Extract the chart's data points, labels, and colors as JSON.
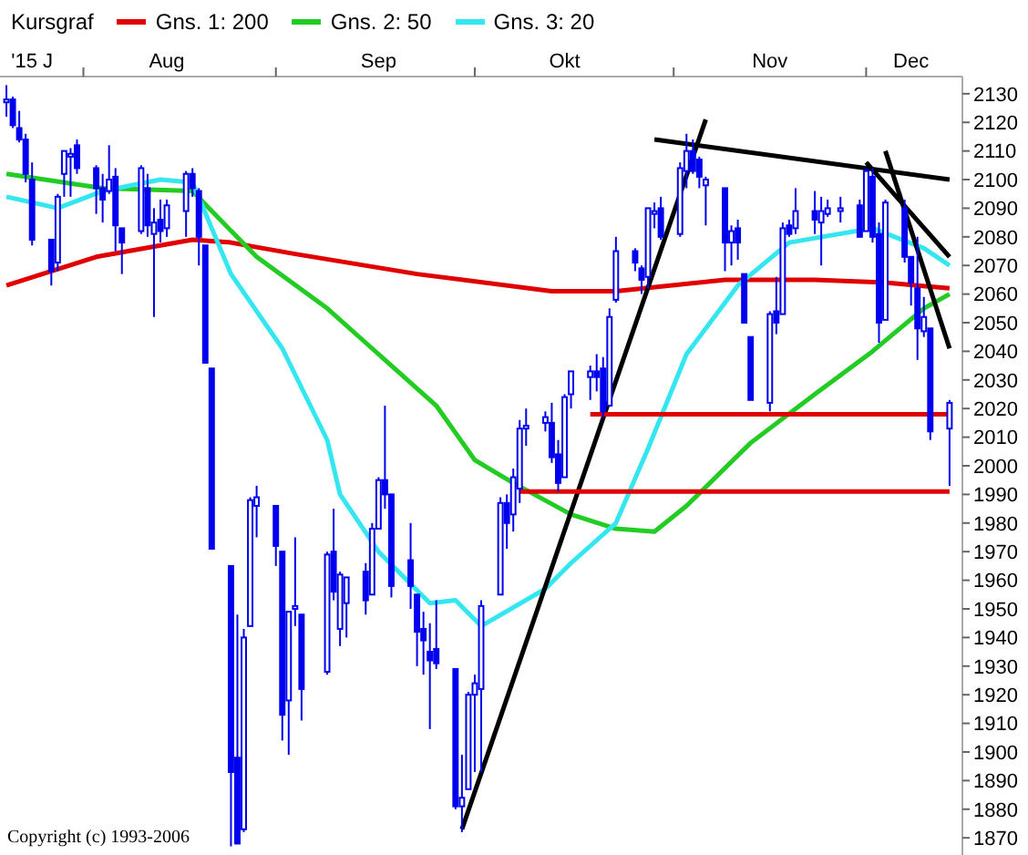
{
  "chart_data": {
    "type": "candlestick",
    "color": "#0000ee",
    "legend": "top left",
    "legend_title": "Kursgraf",
    "marker": "none",
    "annotations": [
      "Copyright (c) 1993-2006"
    ],
    "xlim": [
      "2015-07-19",
      "2015-12-16"
    ],
    "xticks": [
      {
        "value": "2015-07-24",
        "label": "'15 J"
      },
      {
        "value": "2015-08-01",
        "label": null
      },
      {
        "value": "2015-08-14",
        "label": "Aug"
      },
      {
        "value": "2015-08-31",
        "label": null
      },
      {
        "value": "2015-09-16",
        "label": "Sep"
      },
      {
        "value": "2015-10-01",
        "label": null
      },
      {
        "value": "2015-10-15",
        "label": "Okt"
      },
      {
        "value": "2015-11-01",
        "label": null
      },
      {
        "value": "2015-11-16",
        "label": "Nov"
      },
      {
        "value": "2015-12-01",
        "label": null
      },
      {
        "value": "2015-12-08",
        "label": "Dec"
      }
    ],
    "ylim": [
      1864,
      2136
    ],
    "yticks": [
      1870,
      1880,
      1890,
      1900,
      1910,
      1920,
      1930,
      1940,
      1950,
      1960,
      1970,
      1980,
      1990,
      2000,
      2010,
      2020,
      2030,
      2040,
      2050,
      2060,
      2070,
      2080,
      2090,
      2100,
      2110,
      2120,
      2130
    ],
    "x": [
      "2015-07-20",
      "2015-07-21",
      "2015-07-22",
      "2015-07-23",
      "2015-07-24",
      "2015-07-27",
      "2015-07-28",
      "2015-07-29",
      "2015-07-30",
      "2015-07-31",
      "2015-08-03",
      "2015-08-04",
      "2015-08-05",
      "2015-08-06",
      "2015-08-07",
      "2015-08-10",
      "2015-08-11",
      "2015-08-12",
      "2015-08-13",
      "2015-08-14",
      "2015-08-17",
      "2015-08-18",
      "2015-08-19",
      "2015-08-20",
      "2015-08-21",
      "2015-08-24",
      "2015-08-25",
      "2015-08-26",
      "2015-08-27",
      "2015-08-28",
      "2015-08-31",
      "2015-09-01",
      "2015-09-02",
      "2015-09-03",
      "2015-09-04",
      "2015-09-08",
      "2015-09-09",
      "2015-09-10",
      "2015-09-11",
      "2015-09-14",
      "2015-09-15",
      "2015-09-16",
      "2015-09-17",
      "2015-09-18",
      "2015-09-21",
      "2015-09-22",
      "2015-09-23",
      "2015-09-24",
      "2015-09-25",
      "2015-09-28",
      "2015-09-29",
      "2015-09-30",
      "2015-10-01",
      "2015-10-02",
      "2015-10-05",
      "2015-10-06",
      "2015-10-07",
      "2015-10-08",
      "2015-10-09",
      "2015-10-12",
      "2015-10-13",
      "2015-10-14",
      "2015-10-15",
      "2015-10-16",
      "2015-10-19",
      "2015-10-20",
      "2015-10-21",
      "2015-10-22",
      "2015-10-23",
      "2015-10-26",
      "2015-10-27",
      "2015-10-28",
      "2015-10-29",
      "2015-10-30",
      "2015-11-02",
      "2015-11-03",
      "2015-11-04",
      "2015-11-05",
      "2015-11-06",
      "2015-11-09",
      "2015-11-10",
      "2015-11-11",
      "2015-11-12",
      "2015-11-13",
      "2015-11-16",
      "2015-11-17",
      "2015-11-18",
      "2015-11-19",
      "2015-11-20",
      "2015-11-23",
      "2015-11-24",
      "2015-11-25",
      "2015-11-27",
      "2015-11-30",
      "2015-12-01",
      "2015-12-02",
      "2015-12-03",
      "2015-12-04",
      "2015-12-07",
      "2015-12-08",
      "2015-12-09",
      "2015-12-10",
      "2015-12-11",
      "2015-12-14"
    ],
    "ohlc": [
      [
        2127,
        2133,
        2122,
        2128
      ],
      [
        2128,
        2129,
        2118,
        2119
      ],
      [
        2118,
        2124,
        2113,
        2114
      ],
      [
        2114,
        2116,
        2099,
        2102
      ],
      [
        2100,
        2106,
        2077,
        2079
      ],
      [
        2079,
        2079,
        2063,
        2068
      ],
      [
        2071,
        2095,
        2068,
        2094
      ],
      [
        2102,
        2110,
        2094,
        2110
      ],
      [
        2108,
        2111,
        2094,
        2109
      ],
      [
        2112,
        2114,
        2102,
        2104
      ],
      [
        2104,
        2105,
        2088,
        2097
      ],
      [
        2097,
        2102,
        2085,
        2093
      ],
      [
        2096,
        2112,
        2095,
        2100
      ],
      [
        2101,
        2104,
        2075,
        2084
      ],
      [
        2083,
        2083,
        2067,
        2078
      ],
      [
        2082,
        2105,
        2081,
        2104
      ],
      [
        2097,
        2102,
        2080,
        2084
      ],
      [
        2081,
        2090,
        2052,
        2085
      ],
      [
        2086,
        2093,
        2078,
        2082
      ],
      [
        2083,
        2093,
        2080,
        2091
      ],
      [
        2089,
        2103,
        2080,
        2102
      ],
      [
        2102,
        2104,
        2094,
        2097
      ],
      [
        2096,
        2097,
        2070,
        2080
      ],
      [
        2077,
        2077,
        2036,
        2036
      ],
      [
        2034,
        2034,
        1971,
        1971
      ],
      [
        1965,
        1965,
        1867,
        1893
      ],
      [
        1898,
        1948,
        1868,
        1868
      ],
      [
        1873,
        1943,
        1872,
        1940
      ],
      [
        1944,
        1989,
        1944,
        1988
      ],
      [
        1986,
        1993,
        1975,
        1989
      ],
      [
        1986,
        1986,
        1965,
        1972
      ],
      [
        1970,
        1970,
        1904,
        1913
      ],
      [
        1918,
        1949,
        1899,
        1949
      ],
      [
        1950,
        1975,
        1944,
        1951
      ],
      [
        1948,
        1948,
        1911,
        1922
      ],
      [
        1928,
        1970,
        1927,
        1969
      ],
      [
        1970,
        1985,
        1953,
        1956
      ],
      [
        1943,
        1963,
        1937,
        1962
      ],
      [
        1952,
        1961,
        1940,
        1961
      ],
      [
        1963,
        1966,
        1948,
        1953
      ],
      [
        1955,
        1980,
        1955,
        1978
      ],
      [
        1978,
        1996,
        1978,
        1995
      ],
      [
        1995,
        2021,
        1985,
        1990
      ],
      [
        1990,
        1990,
        1954,
        1958
      ],
      [
        1967,
        1980,
        1950,
        1958
      ],
      [
        1955,
        1955,
        1930,
        1942
      ],
      [
        1943,
        1949,
        1927,
        1939
      ],
      [
        1935,
        1945,
        1908,
        1932
      ],
      [
        1936,
        1953,
        1929,
        1931
      ],
      [
        1929,
        1929,
        1880,
        1881
      ],
      [
        1881,
        1899,
        1872,
        1884
      ],
      [
        1887,
        1921,
        1887,
        1920
      ],
      [
        1920,
        1927,
        1893,
        1924
      ],
      [
        1922,
        1953,
        1893,
        1951
      ],
      [
        1955,
        1989,
        1955,
        1987
      ],
      [
        1987,
        1990,
        1971,
        1980
      ],
      [
        1983,
        1999,
        1977,
        1996
      ],
      [
        1992,
        2016,
        1987,
        2013
      ],
      [
        2013,
        2020,
        2007,
        2014
      ],
      [
        2015,
        2019,
        2012,
        2017
      ],
      [
        2015,
        2022,
        2001,
        2003
      ],
      [
        2004,
        2009,
        1991,
        1994
      ],
      [
        1996,
        2025,
        1996,
        2024
      ],
      [
        2025,
        2033,
        2020,
        2033
      ],
      [
        2031,
        2035,
        2023,
        2033
      ],
      [
        2033,
        2039,
        2026,
        2031
      ],
      [
        2034,
        2038,
        2017,
        2019
      ],
      [
        2021,
        2055,
        2021,
        2052
      ],
      [
        2058,
        2080,
        2057,
        2075
      ],
      [
        2075,
        2076,
        2068,
        2071
      ],
      [
        2069,
        2070,
        2060,
        2065
      ],
      [
        2066,
        2090,
        2062,
        2090
      ],
      [
        2088,
        2092,
        2083,
        2089
      ],
      [
        2090,
        2094,
        2079,
        2080
      ],
      [
        2081,
        2106,
        2080,
        2104
      ],
      [
        2103,
        2116,
        2097,
        2110
      ],
      [
        2110,
        2114,
        2102,
        2103
      ],
      [
        2107,
        2108,
        2097,
        2101
      ],
      [
        2098,
        2101,
        2084,
        2100
      ],
      [
        2097,
        2097,
        2068,
        2078
      ],
      [
        2078,
        2084,
        2070,
        2082
      ],
      [
        2083,
        2086,
        2072,
        2078
      ],
      [
        2067,
        2067,
        2050,
        2050
      ],
      [
        2045,
        2045,
        2023,
        2023
      ],
      [
        2022,
        2054,
        2019,
        2053
      ],
      [
        2054,
        2066,
        2046,
        2050
      ],
      [
        2053,
        2085,
        2053,
        2083
      ],
      [
        2084,
        2086,
        2080,
        2081
      ],
      [
        2083,
        2097,
        2081,
        2089
      ],
      [
        2089,
        2096,
        2081,
        2086
      ],
      [
        2085,
        2094,
        2070,
        2089
      ],
      [
        2088,
        2093,
        2087,
        2090
      ],
      [
        2089,
        2094,
        2085,
        2090
      ],
      [
        2091,
        2093,
        2080,
        2080
      ],
      [
        2082,
        2104,
        2082,
        2103
      ],
      [
        2101,
        2104,
        2078,
        2080
      ],
      [
        2081,
        2085,
        2043,
        2050
      ],
      [
        2051,
        2093,
        2051,
        2092
      ],
      [
        2090,
        2093,
        2071,
        2073
      ],
      [
        2073,
        2073,
        2056,
        2064
      ],
      [
        2062,
        2080,
        2037,
        2048
      ],
      [
        2047,
        2059,
        2045,
        2052
      ],
      [
        2048,
        2048,
        2009,
        2012
      ],
      [
        2013,
        2023,
        1993,
        2022
      ]
    ],
    "series": [
      {
        "type": "line",
        "name": "Gns. 1: 200",
        "color": "#e00000",
        "x": [
          "2015-07-20",
          "2015-08-03",
          "2015-08-18",
          "2015-08-24",
          "2015-09-03",
          "2015-09-22",
          "2015-10-13",
          "2015-10-23",
          "2015-11-09",
          "2015-11-23",
          "2015-12-04",
          "2015-12-14"
        ],
        "values": [
          2063,
          2073,
          2079,
          2078,
          2074,
          2067,
          2061,
          2061,
          2065,
          2065,
          2064,
          2062
        ]
      },
      {
        "type": "line",
        "name": "Gns. 2: 50",
        "color": "#22cc22",
        "x": [
          "2015-07-20",
          "2015-08-04",
          "2015-08-18",
          "2015-08-21",
          "2015-08-28",
          "2015-09-08",
          "2015-09-14",
          "2015-09-18",
          "2015-09-25",
          "2015-10-01",
          "2015-10-07",
          "2015-10-16",
          "2015-10-23",
          "2015-10-29",
          "2015-11-03",
          "2015-11-13",
          "2015-11-23",
          "2015-12-02",
          "2015-12-10",
          "2015-12-14"
        ],
        "values": [
          2102,
          2097,
          2096,
          2089,
          2073,
          2055,
          2043,
          2035,
          2021,
          2002,
          1994,
          1983,
          1978,
          1977,
          1986,
          2008,
          2025,
          2040,
          2055,
          2060
        ]
      },
      {
        "type": "line",
        "name": "Gns. 3: 20",
        "color": "#33e6f0",
        "x": [
          "2015-07-20",
          "2015-07-28",
          "2015-08-04",
          "2015-08-13",
          "2015-08-18",
          "2015-08-24",
          "2015-09-01",
          "2015-09-08",
          "2015-09-10",
          "2015-09-16",
          "2015-09-24",
          "2015-09-28",
          "2015-10-02",
          "2015-10-12",
          "2015-10-16",
          "2015-10-23",
          "2015-10-28",
          "2015-11-03",
          "2015-11-11",
          "2015-11-19",
          "2015-12-02",
          "2015-12-10",
          "2015-12-14"
        ],
        "values": [
          2094,
          2090,
          2096,
          2100,
          2099,
          2067,
          2041,
          2009,
          1990,
          1970,
          1952,
          1953,
          1944,
          1957,
          1966,
          1980,
          2006,
          2039,
          2063,
          2078,
          2083,
          2076,
          2070
        ]
      },
      {
        "type": "line",
        "color": "#000000",
        "x": [
          "2015-09-29",
          "2015-11-06"
        ],
        "values": [
          1873,
          2121
        ]
      },
      {
        "type": "line",
        "color": "#000000",
        "x": [
          "2015-10-29",
          "2015-12-14"
        ],
        "values": [
          2114,
          2100
        ]
      },
      {
        "type": "line",
        "color": "#000000",
        "x": [
          "2015-12-01",
          "2015-12-14"
        ],
        "values": [
          2106,
          2073
        ]
      },
      {
        "type": "line",
        "color": "#000000",
        "x": [
          "2015-12-04",
          "2015-12-14"
        ],
        "values": [
          2110,
          2041
        ]
      },
      {
        "type": "line",
        "color": "#e00000",
        "x": [
          "2015-10-19",
          "2015-12-14"
        ],
        "values": [
          2018,
          2018
        ]
      },
      {
        "type": "line",
        "color": "#e00000",
        "x": [
          "2015-10-08",
          "2015-12-14"
        ],
        "values": [
          1991,
          1991
        ]
      }
    ]
  }
}
